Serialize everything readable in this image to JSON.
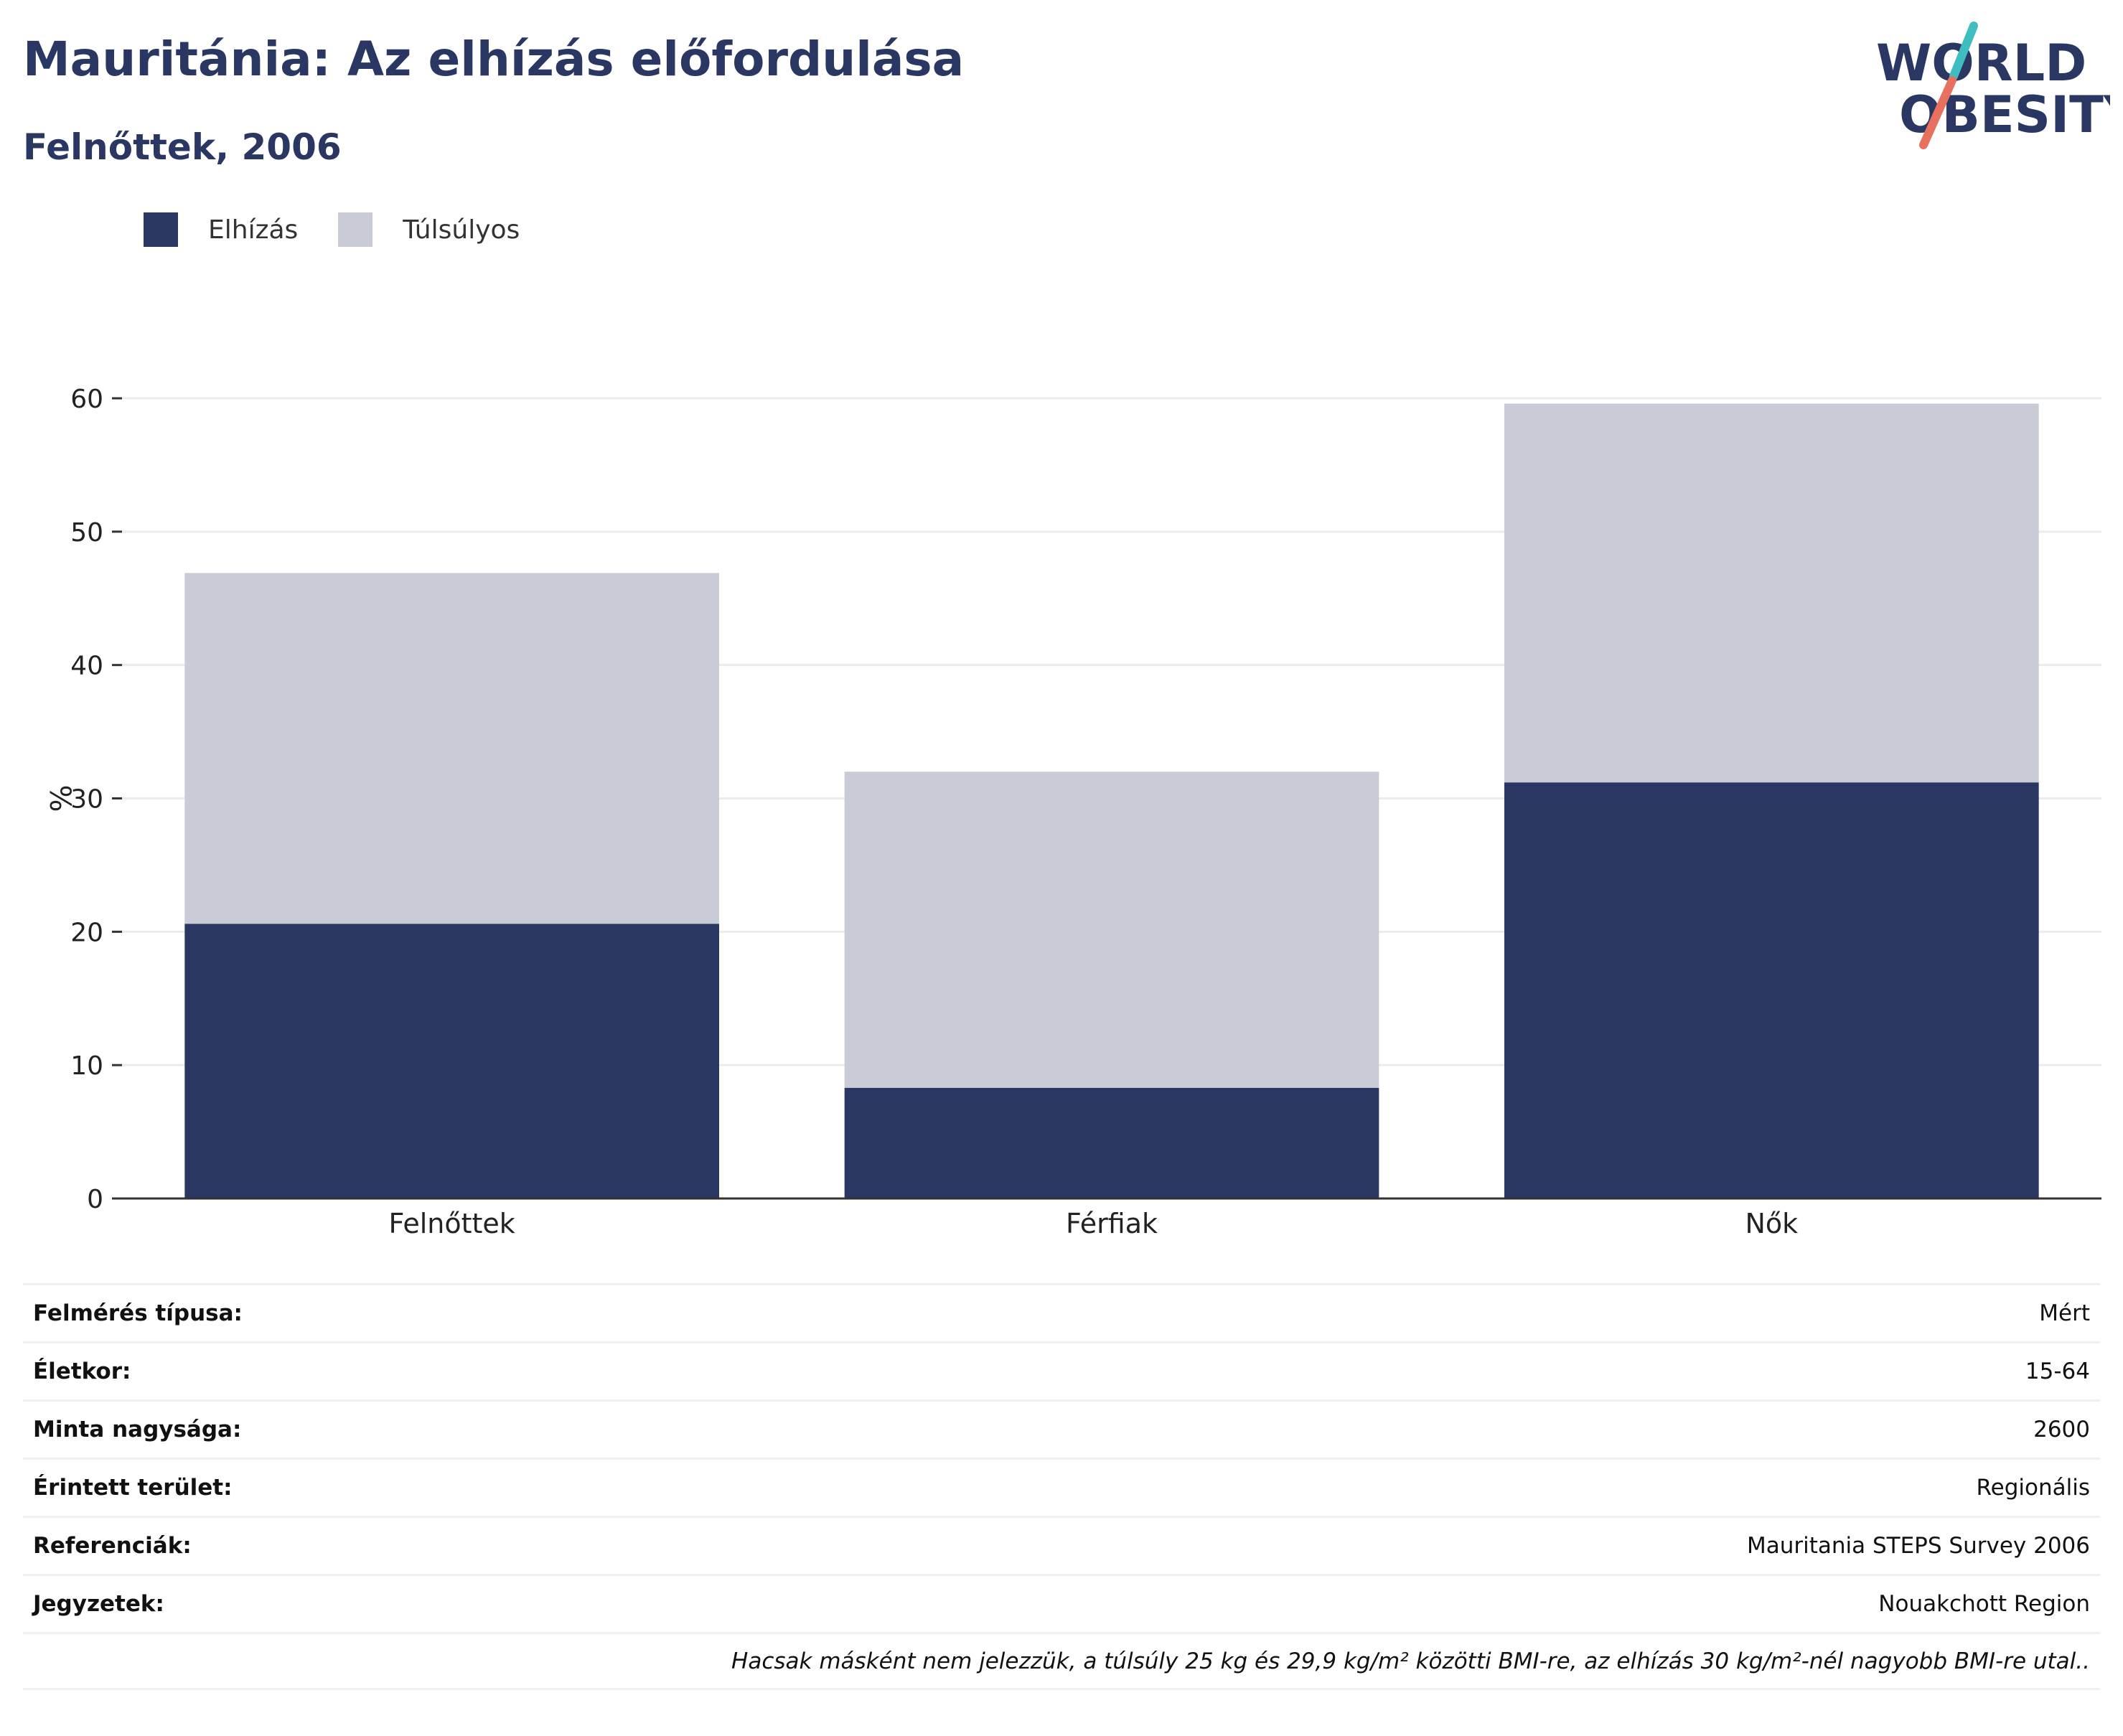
{
  "header": {
    "title": "Mauritánia: Az elhízás előfordulása",
    "subtitle": "Felnőttek, 2006"
  },
  "logo": {
    "line1": "WORLD",
    "line2": "OBESITY",
    "colors": {
      "text": "#2a3762",
      "slash_top": "#3fbdc0",
      "slash_bottom": "#e8705f"
    }
  },
  "legend": [
    {
      "label": "Elhízás",
      "color": "#2a3762"
    },
    {
      "label": "Túlsúlyos",
      "color": "#c9cbd6"
    }
  ],
  "chart_data": {
    "type": "bar",
    "stacked": true,
    "categories": [
      "Felnőttek",
      "Férfiak",
      "Nők"
    ],
    "series": [
      {
        "name": "Elhízás",
        "values": [
          20.6,
          8.3,
          31.2
        ],
        "color": "#2a3762"
      },
      {
        "name": "Túlsúlyos",
        "values": [
          26.3,
          23.7,
          28.4
        ],
        "color": "#c9cbd6"
      }
    ],
    "ylabel": "%",
    "ylim": [
      0,
      60
    ],
    "yticks": [
      0,
      10,
      20,
      30,
      40,
      50,
      60
    ],
    "grid": true,
    "legend_position": "top-left"
  },
  "meta": {
    "rows": [
      {
        "key": "Felmérés típusa:",
        "value": "Mért"
      },
      {
        "key": "Életkor:",
        "value": "15-64"
      },
      {
        "key": "Minta nagysága:",
        "value": "2600"
      },
      {
        "key": "Érintett terület:",
        "value": "Regionális"
      },
      {
        "key": "Referenciák:",
        "value": "Mauritania STEPS Survey 2006"
      },
      {
        "key": "Jegyzetek:",
        "value": "Nouakchott Region"
      }
    ],
    "footnote": "Hacsak másként nem jelezzük, a túlsúly 25 kg és 29,9 kg/m² közötti BMI-re, az elhízás 30 kg/m²-nél nagyobb BMI-re utal.."
  }
}
